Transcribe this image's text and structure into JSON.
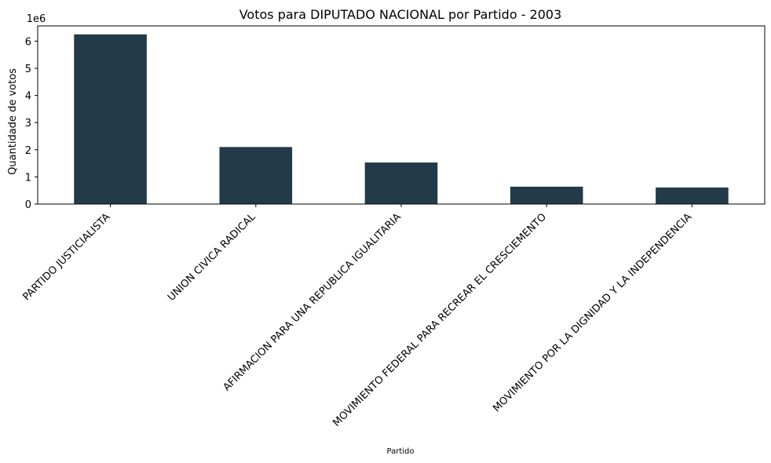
{
  "chart_data": {
    "type": "bar",
    "title": "Votos para DIPUTADO NACIONAL por Partido - 2003",
    "xlabel": "Partido",
    "ylabel": "Quantidade de votos",
    "offset_label": "1e6",
    "categories": [
      "PARTIDO JUSTICIALISTA",
      "UNION CIVICA RADICAL",
      "AFIRMACION PARA UNA REPUBLICA IGUALITARIA",
      "MOVIMIENTO FEDERAL PARA RECREAR EL CRESCIEMENTO",
      "MOVIMIENTO POR LA DIGNIDAD Y LA INDEPENDENCIA"
    ],
    "values": [
      6250000,
      2100000,
      1530000,
      640000,
      610000
    ],
    "yticks": [
      0,
      1,
      2,
      3,
      4,
      5,
      6
    ],
    "ytick_scale": 1000000,
    "ylim": [
      0,
      6562500
    ],
    "bar_color": "#233a48",
    "grid": false,
    "legend": "none"
  }
}
